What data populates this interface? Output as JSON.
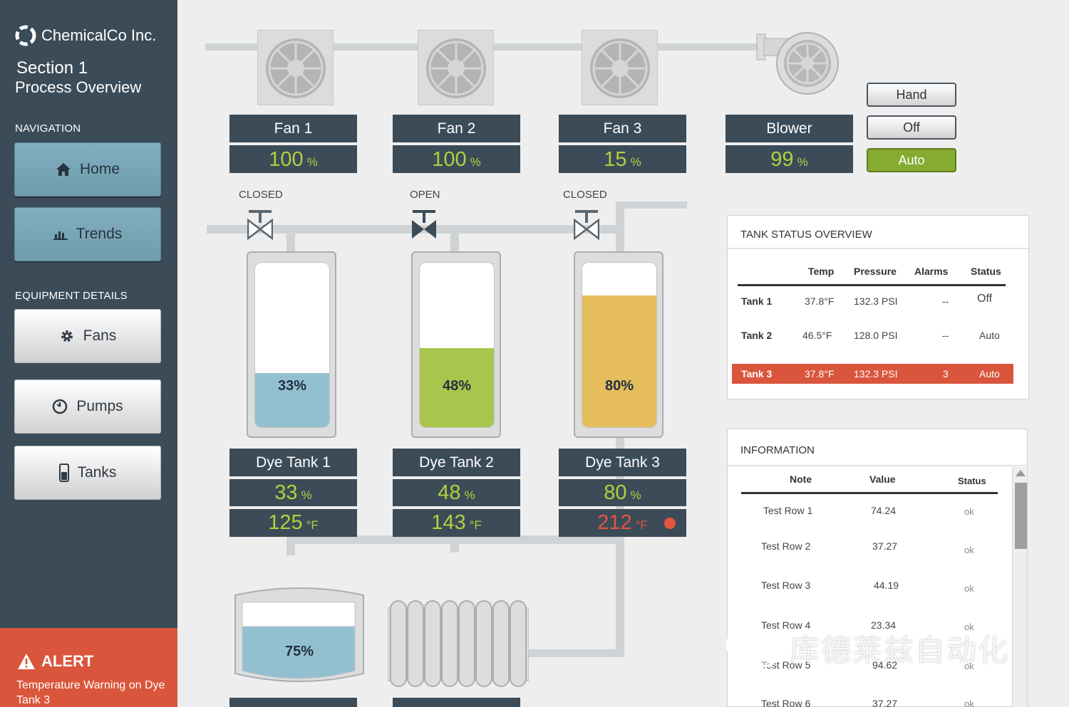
{
  "brand": {
    "name": "ChemicalCo Inc.",
    "section": "Section 1",
    "page_title": "Process Overview"
  },
  "navigation": {
    "heading": "NAVIGATION",
    "items": [
      {
        "label": "Home",
        "icon": "home-icon"
      },
      {
        "label": "Trends",
        "icon": "bar-chart-icon"
      }
    ]
  },
  "equipment": {
    "heading": "EQUIPMENT DETAILS",
    "items": [
      {
        "label": "Fans",
        "icon": "gear-icon"
      },
      {
        "label": "Pumps",
        "icon": "gauge-icon"
      },
      {
        "label": "Tanks",
        "icon": "tank-icon"
      }
    ]
  },
  "alert": {
    "title": "ALERT",
    "message": "Temperature Warning on Dye Tank 3",
    "color": "#d9553c"
  },
  "fans": [
    {
      "name": "Fan 1",
      "value": "100",
      "unit": "%"
    },
    {
      "name": "Fan 2",
      "value": "100",
      "unit": "%"
    },
    {
      "name": "Fan 3",
      "value": "15",
      "unit": "%"
    },
    {
      "name": "Blower",
      "value": "99",
      "unit": "%"
    }
  ],
  "mode_buttons": {
    "hand": "Hand",
    "off": "Off",
    "auto": "Auto",
    "active": "auto",
    "active_color": "#86ab31"
  },
  "valves": [
    {
      "state": "CLOSED"
    },
    {
      "state": "OPEN"
    },
    {
      "state": "CLOSED"
    }
  ],
  "tanks": [
    {
      "name": "Dye Tank 1",
      "level_pct": 33,
      "level_text": "33%",
      "level_value": "33",
      "level_unit": "%",
      "temp": "125",
      "temp_unit": "°F",
      "fill_color": "#92c0d0",
      "alarm": false
    },
    {
      "name": "Dye Tank 2",
      "level_pct": 48,
      "level_text": "48%",
      "level_value": "48",
      "level_unit": "%",
      "temp": "143",
      "temp_unit": "°F",
      "fill_color": "#a8c64c",
      "alarm": false
    },
    {
      "name": "Dye Tank 3",
      "level_pct": 80,
      "level_text": "80%",
      "level_value": "80",
      "level_unit": "%",
      "temp": "212",
      "temp_unit": "°F",
      "fill_color": "#e6bd5c",
      "alarm": true,
      "alarm_color": "#e4553c"
    }
  ],
  "storage_tank": {
    "level_pct": 75,
    "level_text": "75%",
    "fill_color": "#92c0d0"
  },
  "tank_status": {
    "title": "TANK STATUS OVERVIEW",
    "columns": [
      "Temp",
      "Pressure",
      "Alarms",
      "Status"
    ],
    "rows": [
      {
        "name": "Tank 1",
        "temp": "37.8°F",
        "pressure": "132.3 PSI",
        "alarms": "--",
        "status": "Off",
        "highlight": false
      },
      {
        "name": "Tank 2",
        "temp": "46.5°F",
        "pressure": "128.0 PSI",
        "alarms": "--",
        "status": "Auto",
        "highlight": false
      },
      {
        "name": "Tank 3",
        "temp": "37.8°F",
        "pressure": "132.3 PSI",
        "alarms": "3",
        "status": "Auto",
        "highlight": true
      }
    ]
  },
  "information": {
    "title": "INFORMATION",
    "columns": [
      "Note",
      "Value",
      "Status"
    ],
    "rows": [
      {
        "note": "Test Row 1",
        "value": "74.24",
        "status": "ok"
      },
      {
        "note": "Test Row 2",
        "value": "37.27",
        "status": "ok"
      },
      {
        "note": "Test Row 3",
        "value": "44.19",
        "status": "ok"
      },
      {
        "note": "Test Row 4",
        "value": "23.34",
        "status": "ok"
      },
      {
        "note": "Test Row 5",
        "value": "94.62",
        "status": "ok"
      },
      {
        "note": "Test Row 6",
        "value": "37.27",
        "status": "ok"
      }
    ]
  },
  "watermark": {
    "text": "库德莱兹自动化"
  }
}
